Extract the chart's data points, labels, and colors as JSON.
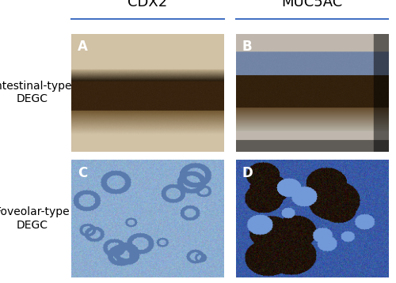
{
  "col_labels": [
    "CDX2",
    "MUC5AC"
  ],
  "row_labels": [
    "Intestinal-type\nDEGC",
    "Foveolar-type\nDEGC"
  ],
  "panel_letters": [
    "A",
    "B",
    "C",
    "D"
  ],
  "col_label_fontsize": 13,
  "row_label_fontsize": 10,
  "letter_fontsize": 12,
  "background_color": "#ffffff",
  "header_line_color": "#4472C4",
  "text_color": "#000000",
  "fig_width": 5.0,
  "fig_height": 3.58,
  "dpi": 100
}
